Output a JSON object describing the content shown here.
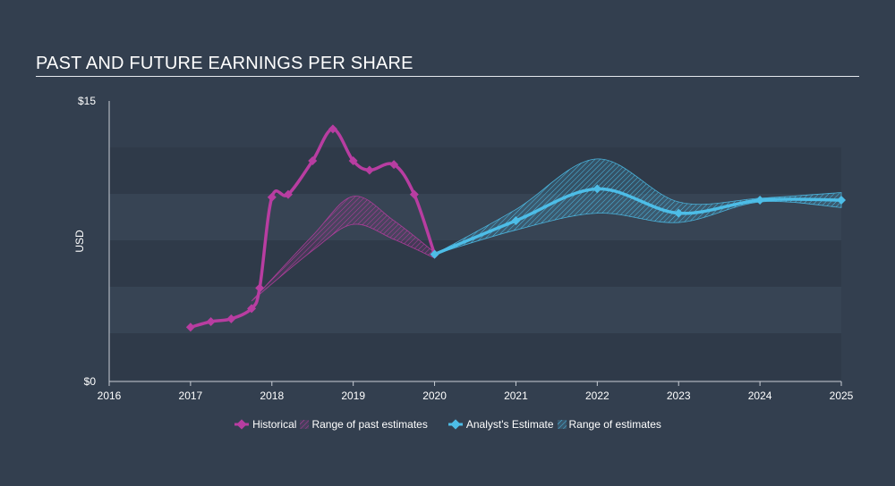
{
  "title": "PAST AND FUTURE EARNINGS PER SHARE",
  "chart_data": {
    "type": "line",
    "title": "PAST AND FUTURE EARNINGS PER SHARE",
    "ylabel": "USD",
    "ylim": [
      0,
      15
    ],
    "xlim": [
      2016,
      2025
    ],
    "y_tick_labels": [
      "$15",
      "$0"
    ],
    "x_ticks": [
      2016,
      2017,
      2018,
      2019,
      2020,
      2021,
      2022,
      2023,
      2024,
      2025
    ],
    "grid": "horizontal bands",
    "legend_position": "bottom",
    "colors": {
      "historical": "#b83da1",
      "estimate": "#4dbde7",
      "background": "#333f4f",
      "band_dark": "#2f3a49",
      "band_light": "#374454"
    },
    "series": [
      {
        "name": "Historical",
        "points": [
          [
            2017.0,
            2.9
          ],
          [
            2017.25,
            3.2
          ],
          [
            2017.5,
            3.35
          ],
          [
            2017.75,
            3.9
          ],
          [
            2017.85,
            5.0
          ],
          [
            2018.0,
            9.85
          ],
          [
            2018.2,
            10.0
          ],
          [
            2018.5,
            11.8
          ],
          [
            2018.75,
            13.5
          ],
          [
            2019.0,
            11.8
          ],
          [
            2019.2,
            11.3
          ],
          [
            2019.5,
            11.6
          ],
          [
            2019.75,
            10.0
          ],
          [
            2020.0,
            6.8
          ]
        ]
      },
      {
        "name": "Range of past estimates",
        "upper": [
          [
            2017.75,
            4.3
          ],
          [
            2018.5,
            7.8
          ],
          [
            2019.0,
            9.9
          ],
          [
            2019.5,
            8.6
          ],
          [
            2020.0,
            6.9
          ]
        ],
        "lower": [
          [
            2017.75,
            4.3
          ],
          [
            2018.5,
            7.0
          ],
          [
            2019.0,
            8.4
          ],
          [
            2019.5,
            7.6
          ],
          [
            2020.0,
            6.6
          ]
        ]
      },
      {
        "name": "Analyst's Estimate",
        "points": [
          [
            2020.0,
            6.8
          ],
          [
            2021.0,
            8.6
          ],
          [
            2022.0,
            10.3
          ],
          [
            2023.0,
            9.0
          ],
          [
            2024.0,
            9.7
          ],
          [
            2025.0,
            9.7
          ]
        ]
      },
      {
        "name": "Range of estimates",
        "upper": [
          [
            2020.0,
            6.8
          ],
          [
            2021.0,
            9.2
          ],
          [
            2022.0,
            11.9
          ],
          [
            2023.0,
            9.6
          ],
          [
            2024.0,
            9.8
          ],
          [
            2025.0,
            10.1
          ]
        ],
        "lower": [
          [
            2020.0,
            6.8
          ],
          [
            2021.0,
            8.1
          ],
          [
            2022.0,
            9.0
          ],
          [
            2023.0,
            8.5
          ],
          [
            2024.0,
            9.6
          ],
          [
            2025.0,
            9.3
          ]
        ]
      }
    ]
  },
  "legend": {
    "historical": "Historical",
    "past_range": "Range of past estimates",
    "estimate": "Analyst's Estimate",
    "future_range": "Range of estimates"
  }
}
